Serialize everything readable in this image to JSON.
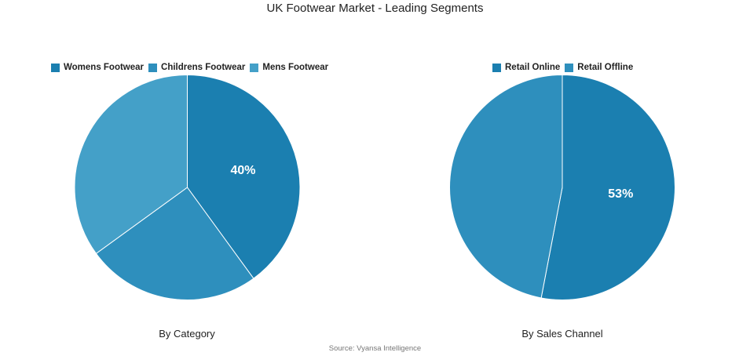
{
  "title": "UK Footwear Market - Leading Segments",
  "source": "Source: Vyansa Intelligence",
  "chart_data": [
    {
      "type": "pie",
      "caption": "By Category",
      "labels": [
        "Womens Footwear",
        "Childrens Footwear",
        "Mens Footwear"
      ],
      "values": [
        40,
        25,
        35
      ],
      "colors": [
        "#1b7fb0",
        "#2e8fbd",
        "#44a0c8"
      ],
      "data_labels": [
        "40%",
        "",
        ""
      ],
      "legend_position": "top"
    },
    {
      "type": "pie",
      "caption": "By Sales Channel",
      "labels": [
        "Retail Online",
        "Retail Offline"
      ],
      "values": [
        53,
        47
      ],
      "colors": [
        "#1b7fb0",
        "#2e8fbd"
      ],
      "data_labels": [
        "53%",
        ""
      ],
      "legend_position": "top"
    }
  ]
}
